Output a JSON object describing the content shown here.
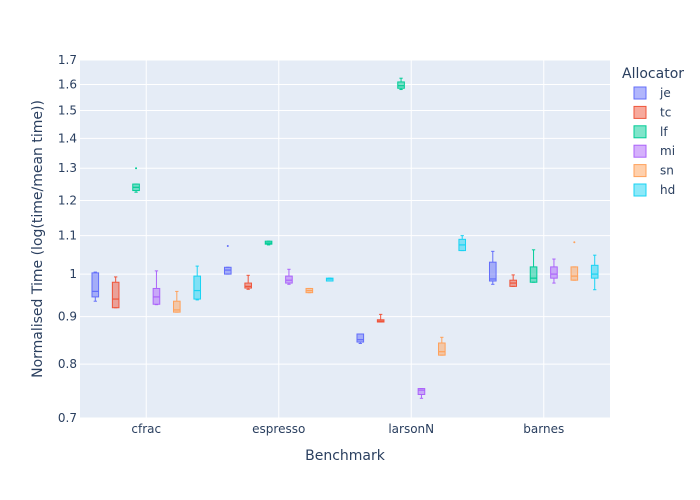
{
  "chart_data": {
    "type": "box",
    "xlabel": "Benchmark",
    "ylabel": "Normalised Time (log(time/mean time))",
    "ylim": [
      0.7,
      1.7
    ],
    "yscale": "log",
    "yticks": [
      0.7,
      0.8,
      0.9,
      1,
      1.1,
      1.2,
      1.3,
      1.4,
      1.5,
      1.6,
      1.7
    ],
    "categories": [
      "cfrac",
      "espresso",
      "larsonN",
      "barnes"
    ],
    "legend": {
      "title": "Allocator",
      "position": "right"
    },
    "grid": true,
    "series": [
      {
        "name": "je",
        "color": "#636efa",
        "boxes": [
          {
            "min": 0.935,
            "q1": 0.945,
            "median": 0.958,
            "q3": 1.003,
            "max": 1.005,
            "outliers": []
          },
          {
            "min": 1.0,
            "q1": 1.0,
            "median": 1.01,
            "q3": 1.017,
            "max": 1.017,
            "outliers": [
              1.072
            ]
          },
          {
            "min": 0.842,
            "q1": 0.845,
            "median": 0.85,
            "q3": 0.862,
            "max": 0.862,
            "outliers": []
          },
          {
            "min": 0.975,
            "q1": 0.983,
            "median": 0.988,
            "q3": 1.03,
            "max": 1.058,
            "outliers": []
          }
        ]
      },
      {
        "name": "tc",
        "color": "#ef553b",
        "boxes": [
          {
            "min": 0.92,
            "q1": 0.92,
            "median": 0.94,
            "q3": 0.98,
            "max": 0.993,
            "outliers": []
          },
          {
            "min": 0.963,
            "q1": 0.966,
            "median": 0.97,
            "q3": 0.978,
            "max": 0.997,
            "outliers": []
          },
          {
            "min": 0.888,
            "q1": 0.888,
            "median": 0.89,
            "q3": 0.893,
            "max": 0.905,
            "outliers": []
          },
          {
            "min": 0.97,
            "q1": 0.97,
            "median": 0.978,
            "q3": 0.985,
            "max": 0.998,
            "outliers": []
          }
        ]
      },
      {
        "name": "lf",
        "color": "#00cc96",
        "boxes": [
          {
            "min": 1.225,
            "q1": 1.23,
            "median": 1.24,
            "q3": 1.25,
            "max": 1.25,
            "outliers": [
              1.3
            ]
          },
          {
            "min": 1.075,
            "q1": 1.077,
            "median": 1.08,
            "q3": 1.085,
            "max": 1.085,
            "outliers": []
          },
          {
            "min": 1.58,
            "q1": 1.585,
            "median": 1.595,
            "q3": 1.61,
            "max": 1.625,
            "outliers": []
          },
          {
            "min": 0.98,
            "q1": 0.98,
            "median": 0.99,
            "q3": 1.018,
            "max": 1.062,
            "outliers": []
          }
        ]
      },
      {
        "name": "mi",
        "color": "#ab63fa",
        "boxes": [
          {
            "min": 0.927,
            "q1": 0.928,
            "median": 0.945,
            "q3": 0.965,
            "max": 1.008,
            "outliers": []
          },
          {
            "min": 0.975,
            "q1": 0.978,
            "median": 0.985,
            "q3": 0.995,
            "max": 1.012,
            "outliers": []
          },
          {
            "min": 0.735,
            "q1": 0.742,
            "median": 0.75,
            "q3": 0.753,
            "max": 0.753,
            "outliers": []
          },
          {
            "min": 0.978,
            "q1": 0.99,
            "median": 1.0,
            "q3": 1.018,
            "max": 1.038,
            "outliers": []
          }
        ]
      },
      {
        "name": "sn",
        "color": "#ffa15a",
        "boxes": [
          {
            "min": 0.91,
            "q1": 0.91,
            "median": 0.915,
            "q3": 0.935,
            "max": 0.958,
            "outliers": []
          },
          {
            "min": 0.955,
            "q1": 0.955,
            "median": 0.96,
            "q3": 0.965,
            "max": 0.965,
            "outliers": []
          },
          {
            "min": 0.818,
            "q1": 0.818,
            "median": 0.825,
            "q3": 0.843,
            "max": 0.855,
            "outliers": []
          },
          {
            "min": 0.985,
            "q1": 0.985,
            "median": 0.995,
            "q3": 1.018,
            "max": 1.018,
            "outliers": [
              1.082
            ]
          }
        ]
      },
      {
        "name": "hd",
        "color": "#19d3f3",
        "boxes": [
          {
            "min": 0.938,
            "q1": 0.94,
            "median": 0.96,
            "q3": 0.995,
            "max": 1.02,
            "outliers": []
          },
          {
            "min": 0.983,
            "q1": 0.983,
            "median": 0.988,
            "q3": 0.99,
            "max": 0.99,
            "outliers": []
          },
          {
            "min": 1.06,
            "q1": 1.06,
            "median": 1.075,
            "q3": 1.09,
            "max": 1.1,
            "outliers": []
          },
          {
            "min": 0.962,
            "q1": 0.99,
            "median": 1.0,
            "q3": 1.022,
            "max": 1.048,
            "outliers": []
          }
        ]
      }
    ]
  }
}
